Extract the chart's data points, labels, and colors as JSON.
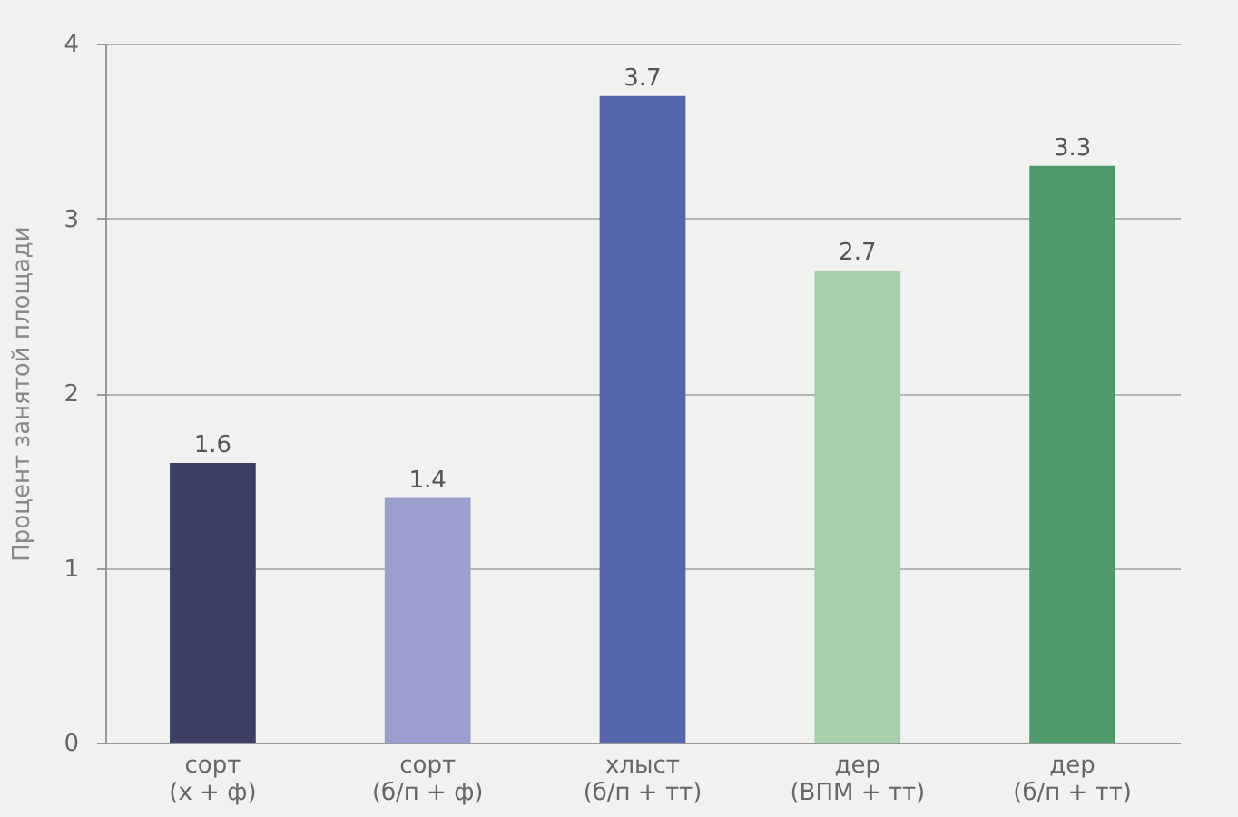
{
  "chart_data": {
    "type": "bar",
    "ylabel": "Процент занятой площади",
    "categories": [
      "сорт\n(х + ф)",
      "сорт\n(б/п + ф)",
      "хлыст\n(б/п + тт)",
      "дер\n(ВПМ + тт)",
      "дер\n(б/п + тт)"
    ],
    "values": [
      1.6,
      1.4,
      3.7,
      2.7,
      3.3
    ],
    "colors": [
      "#3e3f66",
      "#9a9fcf",
      "#5566ad",
      "#a6cfae",
      "#4f9a6b"
    ],
    "ylim": [
      0,
      4
    ],
    "yticks": [
      0,
      1,
      2,
      3,
      4
    ],
    "grid": "y",
    "data_labels": true
  }
}
